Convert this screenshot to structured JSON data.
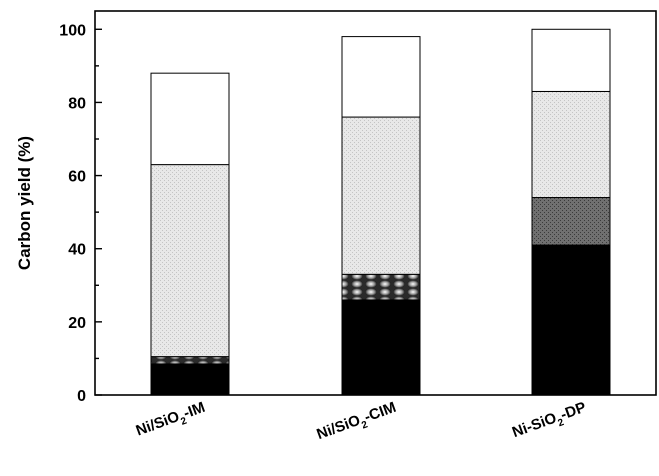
{
  "chart_data": {
    "type": "bar",
    "stacked": true,
    "title": "",
    "xlabel": "",
    "ylabel": "Carbon yield (%)",
    "ylim": [
      0,
      105
    ],
    "yticks": [
      0,
      20,
      40,
      60,
      80,
      100
    ],
    "grid": false,
    "legend": "none",
    "categories": [
      {
        "pre": "Ni/SiO",
        "sub": "2",
        "post": "-IM"
      },
      {
        "pre": "Ni/SiO",
        "sub": "2",
        "post": "-CIM"
      },
      {
        "pre": "Ni-SiO",
        "sub": "2",
        "post": "-DP"
      }
    ],
    "series": [
      {
        "values": [
          8.5,
          26.0,
          41.0
        ],
        "fill": "solid-black"
      },
      {
        "values": [
          2.0,
          7.0,
          13.0
        ],
        "fill": "dotted-pattern"
      },
      {
        "values": [
          52.5,
          43.0,
          29.0
        ],
        "fill": "light-gray-stipple"
      },
      {
        "values": [
          25.0,
          22.0,
          17.0
        ],
        "fill": "white"
      }
    ]
  }
}
